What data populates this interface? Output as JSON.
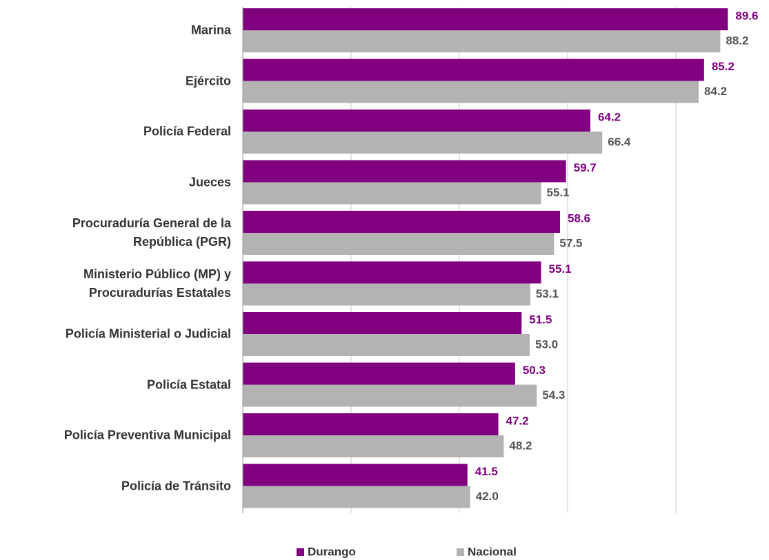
{
  "chart_data": {
    "type": "barh",
    "categories": [
      "Marina",
      "Ejército",
      "Policía Federal",
      "Jueces",
      "Procuraduría General de la\nRepública (PGR)",
      "Ministerio Público (MP) y\nProcuradurías Estatales",
      "Policía Ministerial o Judicial",
      "Policía Estatal",
      "Policía Preventiva Municipal",
      "Policía de Tránsito"
    ],
    "series": [
      {
        "name": "Durango",
        "color": "#800080",
        "values": [
          89.6,
          85.2,
          64.2,
          59.7,
          58.6,
          55.1,
          51.5,
          50.3,
          47.2,
          41.5
        ]
      },
      {
        "name": "Nacional",
        "color": "#b3b3b3",
        "values": [
          88.2,
          84.2,
          66.4,
          55.1,
          57.5,
          53.1,
          53.0,
          54.3,
          48.2,
          42.0
        ],
        "value_labels": [
          "88.2",
          "84.2",
          "66.4",
          "55.1",
          "57.5",
          "53.1",
          "53.0",
          "54.3",
          "48.2",
          "42.0"
        ]
      }
    ],
    "xlim": [
      0,
      100
    ],
    "xticks": [
      20,
      40,
      60,
      80
    ],
    "grid": true,
    "legend": "bottom"
  }
}
